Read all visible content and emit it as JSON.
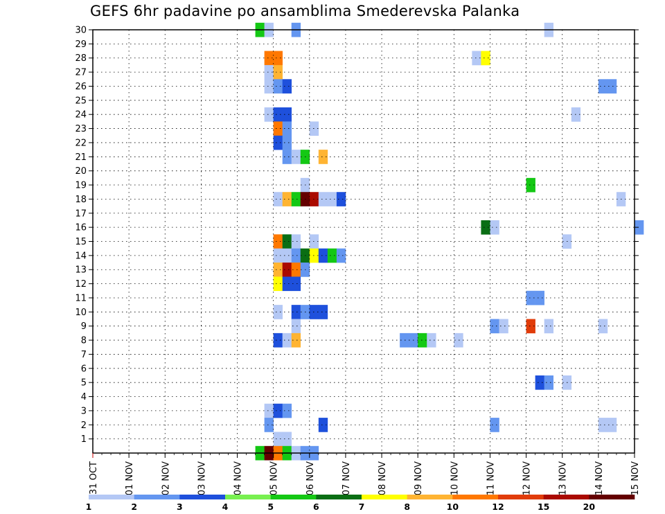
{
  "chart_data": {
    "type": "heatmap",
    "title": "GEFS 6hr padavine po ansamblima Smederevska Palanka",
    "xlabel": "",
    "ylabel": "",
    "x_ticks": [
      "31 OCT",
      "01 NOV",
      "02 NOV",
      "03 NOV",
      "04 NOV",
      "05 NOV",
      "06 NOV",
      "07 NOV",
      "08 NOV",
      "09 NOV",
      "10 NOV",
      "11 NOV",
      "12 NOV",
      "13 NOV",
      "14 NOV",
      "15 NOV"
    ],
    "x_range_days": [
      0,
      15
    ],
    "time_step_hours": 6,
    "y_ticks": [
      "1",
      "2",
      "3",
      "4",
      "5",
      "6",
      "7",
      "8",
      "9",
      "10",
      "11",
      "12",
      "13",
      "14",
      "15",
      "16",
      "17",
      "18",
      "19",
      "20",
      "21",
      "22",
      "23",
      "24",
      "25",
      "26",
      "27",
      "28",
      "29",
      "30"
    ],
    "y_range": [
      0,
      30
    ],
    "grid": true,
    "colorbar": {
      "position": "bottom",
      "thresholds": [
        1,
        2,
        3,
        4,
        5,
        6,
        7,
        8,
        10,
        12,
        15,
        20
      ],
      "tick_labels": [
        "1",
        "2",
        "3",
        "4",
        "5",
        "6",
        "7",
        "8",
        "10",
        "12",
        "15",
        "20"
      ],
      "colors": [
        "#b4c8f5",
        "#6496f0",
        "#1e50dc",
        "#78f050",
        "#14c814",
        "#0a6e14",
        "#ffff00",
        "#ffb432",
        "#ff7800",
        "#e13c0a",
        "#aa0a00",
        "#640000"
      ]
    },
    "cells": [
      {
        "member": 30,
        "step": 18,
        "level": 5
      },
      {
        "member": 30,
        "step": 19,
        "level": 1
      },
      {
        "member": 30,
        "step": 22,
        "level": 2
      },
      {
        "member": 30,
        "step": 50,
        "level": 1
      },
      {
        "member": 28,
        "step": 19,
        "level": 10
      },
      {
        "member": 28,
        "step": 20,
        "level": 10
      },
      {
        "member": 28,
        "step": 42,
        "level": 1
      },
      {
        "member": 28,
        "step": 43,
        "level": 7
      },
      {
        "member": 27,
        "step": 19,
        "level": 1
      },
      {
        "member": 27,
        "step": 20,
        "level": 8
      },
      {
        "member": 26,
        "step": 19,
        "level": 1
      },
      {
        "member": 26,
        "step": 20,
        "level": 2
      },
      {
        "member": 26,
        "step": 21,
        "level": 3
      },
      {
        "member": 26,
        "step": 56,
        "level": 2
      },
      {
        "member": 26,
        "step": 57,
        "level": 2
      },
      {
        "member": 24,
        "step": 19,
        "level": 1
      },
      {
        "member": 24,
        "step": 20,
        "level": 3
      },
      {
        "member": 24,
        "step": 21,
        "level": 3
      },
      {
        "member": 24,
        "step": 53,
        "level": 1
      },
      {
        "member": 23,
        "step": 20,
        "level": 10
      },
      {
        "member": 23,
        "step": 21,
        "level": 2
      },
      {
        "member": 23,
        "step": 24,
        "level": 1
      },
      {
        "member": 22,
        "step": 20,
        "level": 3
      },
      {
        "member": 22,
        "step": 21,
        "level": 2
      },
      {
        "member": 21,
        "step": 21,
        "level": 2
      },
      {
        "member": 21,
        "step": 22,
        "level": 1
      },
      {
        "member": 21,
        "step": 23,
        "level": 5
      },
      {
        "member": 21,
        "step": 25,
        "level": 8
      },
      {
        "member": 19,
        "step": 23,
        "level": 1
      },
      {
        "member": 19,
        "step": 48,
        "level": 5
      },
      {
        "member": 18,
        "step": 20,
        "level": 1
      },
      {
        "member": 18,
        "step": 21,
        "level": 8
      },
      {
        "member": 18,
        "step": 22,
        "level": 5
      },
      {
        "member": 18,
        "step": 23,
        "level": 20
      },
      {
        "member": 18,
        "step": 24,
        "level": 15
      },
      {
        "member": 18,
        "step": 25,
        "level": 1
      },
      {
        "member": 18,
        "step": 26,
        "level": 1
      },
      {
        "member": 18,
        "step": 27,
        "level": 3
      },
      {
        "member": 18,
        "step": 58,
        "level": 1
      },
      {
        "member": 16,
        "step": 43,
        "level": 6
      },
      {
        "member": 16,
        "step": 44,
        "level": 1
      },
      {
        "member": 16,
        "step": 60,
        "level": 2
      },
      {
        "member": 15,
        "step": 20,
        "level": 10
      },
      {
        "member": 15,
        "step": 21,
        "level": 6
      },
      {
        "member": 15,
        "step": 22,
        "level": 1
      },
      {
        "member": 15,
        "step": 24,
        "level": 1
      },
      {
        "member": 15,
        "step": 52,
        "level": 1
      },
      {
        "member": 14,
        "step": 20,
        "level": 1
      },
      {
        "member": 14,
        "step": 21,
        "level": 1
      },
      {
        "member": 14,
        "step": 22,
        "level": 2
      },
      {
        "member": 14,
        "step": 23,
        "level": 6
      },
      {
        "member": 14,
        "step": 24,
        "level": 7
      },
      {
        "member": 14,
        "step": 25,
        "level": 3
      },
      {
        "member": 14,
        "step": 26,
        "level": 5
      },
      {
        "member": 14,
        "step": 27,
        "level": 2
      },
      {
        "member": 13,
        "step": 20,
        "level": 8
      },
      {
        "member": 13,
        "step": 21,
        "level": 15
      },
      {
        "member": 13,
        "step": 22,
        "level": 10
      },
      {
        "member": 13,
        "step": 23,
        "level": 2
      },
      {
        "member": 12,
        "step": 20,
        "level": 7
      },
      {
        "member": 12,
        "step": 21,
        "level": 3
      },
      {
        "member": 12,
        "step": 22,
        "level": 3
      },
      {
        "member": 11,
        "step": 48,
        "level": 2
      },
      {
        "member": 11,
        "step": 49,
        "level": 2
      },
      {
        "member": 10,
        "step": 20,
        "level": 1
      },
      {
        "member": 10,
        "step": 22,
        "level": 3
      },
      {
        "member": 10,
        "step": 23,
        "level": 2
      },
      {
        "member": 10,
        "step": 24,
        "level": 3
      },
      {
        "member": 10,
        "step": 25,
        "level": 3
      },
      {
        "member": 9,
        "step": 22,
        "level": 1
      },
      {
        "member": 9,
        "step": 44,
        "level": 2
      },
      {
        "member": 9,
        "step": 45,
        "level": 1
      },
      {
        "member": 9,
        "step": 48,
        "level": 12
      },
      {
        "member": 9,
        "step": 50,
        "level": 1
      },
      {
        "member": 9,
        "step": 56,
        "level": 1
      },
      {
        "member": 8,
        "step": 20,
        "level": 3
      },
      {
        "member": 8,
        "step": 21,
        "level": 1
      },
      {
        "member": 8,
        "step": 22,
        "level": 8
      },
      {
        "member": 8,
        "step": 34,
        "level": 2
      },
      {
        "member": 8,
        "step": 35,
        "level": 2
      },
      {
        "member": 8,
        "step": 36,
        "level": 5
      },
      {
        "member": 8,
        "step": 37,
        "level": 1
      },
      {
        "member": 8,
        "step": 40,
        "level": 1
      },
      {
        "member": 5,
        "step": 49,
        "level": 3
      },
      {
        "member": 5,
        "step": 50,
        "level": 2
      },
      {
        "member": 5,
        "step": 52,
        "level": 1
      },
      {
        "member": 3,
        "step": 19,
        "level": 1
      },
      {
        "member": 3,
        "step": 20,
        "level": 3
      },
      {
        "member": 3,
        "step": 21,
        "level": 2
      },
      {
        "member": 2,
        "step": 19,
        "level": 2
      },
      {
        "member": 2,
        "step": 25,
        "level": 3
      },
      {
        "member": 2,
        "step": 44,
        "level": 2
      },
      {
        "member": 2,
        "step": 56,
        "level": 1
      },
      {
        "member": 2,
        "step": 57,
        "level": 1
      },
      {
        "member": 1,
        "step": 20,
        "level": 1
      },
      {
        "member": 1,
        "step": 21,
        "level": 1
      },
      {
        "member": 0,
        "step": 18,
        "level": 5
      },
      {
        "member": 0,
        "step": 19,
        "level": 20
      },
      {
        "member": 0,
        "step": 20,
        "level": 10
      },
      {
        "member": 0,
        "step": 21,
        "level": 5
      },
      {
        "member": 0,
        "step": 22,
        "level": 1
      },
      {
        "member": 0,
        "step": 23,
        "level": 2
      },
      {
        "member": 0,
        "step": 24,
        "level": 2
      }
    ]
  }
}
